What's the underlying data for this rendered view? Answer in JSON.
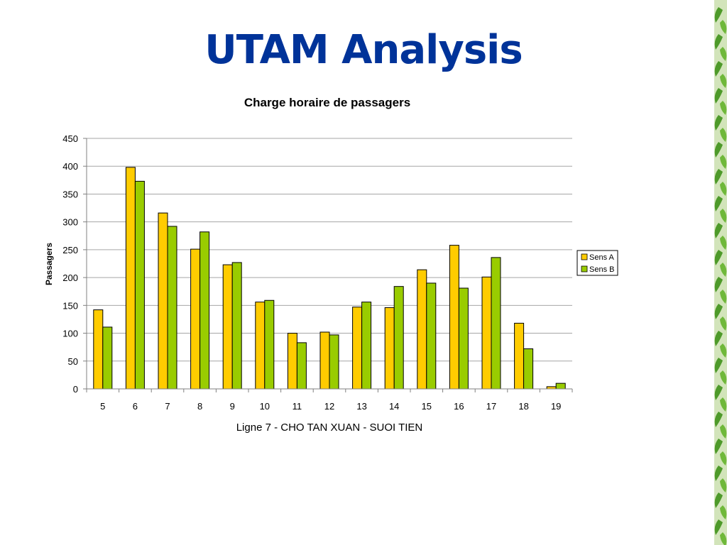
{
  "slide": {
    "title": "UTAM Analysis"
  },
  "chart_data": {
    "type": "bar",
    "title": "Charge horaire de passagers",
    "xlabel": "Ligne 7 - CHO TAN XUAN - SUOI TIEN",
    "ylabel": "Passagers",
    "ylim": [
      0,
      450
    ],
    "yticks": [
      0,
      50,
      100,
      150,
      200,
      250,
      300,
      350,
      400,
      450
    ],
    "grid": true,
    "legend_position": "right",
    "categories": [
      "5",
      "6",
      "7",
      "8",
      "9",
      "10",
      "11",
      "12",
      "13",
      "14",
      "15",
      "16",
      "17",
      "18",
      "19"
    ],
    "series": [
      {
        "name": "Sens A",
        "color": "#FFCC00",
        "values": [
          142,
          398,
          316,
          251,
          223,
          156,
          100,
          102,
          147,
          146,
          214,
          258,
          201,
          118,
          4
        ]
      },
      {
        "name": "Sens B",
        "color": "#99CC00",
        "values": [
          111,
          373,
          292,
          282,
          227,
          159,
          83,
          97,
          156,
          184,
          190,
          181,
          236,
          72,
          10
        ]
      }
    ]
  }
}
